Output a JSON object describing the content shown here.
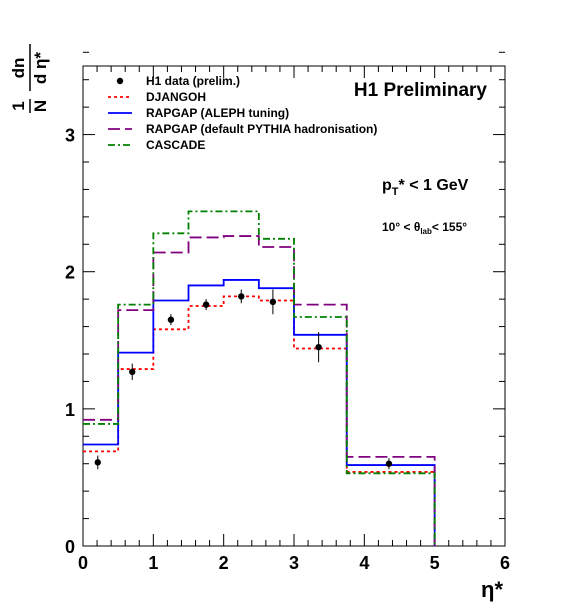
{
  "chart_data": {
    "type": "step-histogram",
    "title": "H1 Preliminary",
    "xlabel": "η*",
    "ylabel": {
      "frac_num": "1",
      "frac_den": "N",
      "dn_num": "dn",
      "dn_den": "d η*"
    },
    "annotations": {
      "cut_pt": {
        "prefix": "p",
        "sub": "T",
        "suffix": "* < 1 GeV"
      },
      "cut_theta": {
        "prefix": "10° < θ",
        "sub": "lab",
        "suffix": "< 155°"
      }
    },
    "xlim": [
      0,
      6
    ],
    "ylim": [
      0,
      3.5
    ],
    "x_ticks": [
      "0",
      "1",
      "2",
      "3",
      "4",
      "5",
      "6"
    ],
    "y_ticks": [
      "0",
      "1",
      "2",
      "3"
    ],
    "bin_edges": [
      0,
      0.5,
      1,
      1.5,
      2,
      2.5,
      3,
      3.75,
      5
    ],
    "legend_position": "top-left",
    "data_points": {
      "name": "H1 data (prelim.)",
      "x": [
        0.21,
        0.7,
        1.25,
        1.75,
        2.25,
        2.7,
        3.35,
        4.35
      ],
      "y": [
        0.61,
        1.27,
        1.65,
        1.76,
        1.82,
        1.78,
        1.45,
        0.6
      ],
      "err": [
        0.05,
        0.06,
        0.04,
        0.04,
        0.05,
        0.09,
        0.11,
        0.04
      ]
    },
    "series": [
      {
        "name": "DJANGOH",
        "color": "#ff0000",
        "dash": "3,3",
        "values": [
          0.69,
          1.29,
          1.58,
          1.75,
          1.82,
          1.79,
          1.44,
          0.54
        ]
      },
      {
        "name": "RAPGAP (ALEPH tuning)",
        "color": "#0000ff",
        "dash": "",
        "values": [
          0.74,
          1.41,
          1.79,
          1.9,
          1.94,
          1.88,
          1.54,
          0.59
        ]
      },
      {
        "name": "RAPGAP (default PYTHIA hadronisation)",
        "color": "#800080",
        "dash": "12,5",
        "values": [
          0.92,
          1.72,
          2.14,
          2.25,
          2.26,
          2.18,
          1.76,
          0.65
        ]
      },
      {
        "name": "CASCADE",
        "color": "#008000",
        "dash": "7,3,2,3",
        "values": [
          0.89,
          1.76,
          2.28,
          2.44,
          2.44,
          2.24,
          1.67,
          0.53
        ]
      }
    ]
  }
}
